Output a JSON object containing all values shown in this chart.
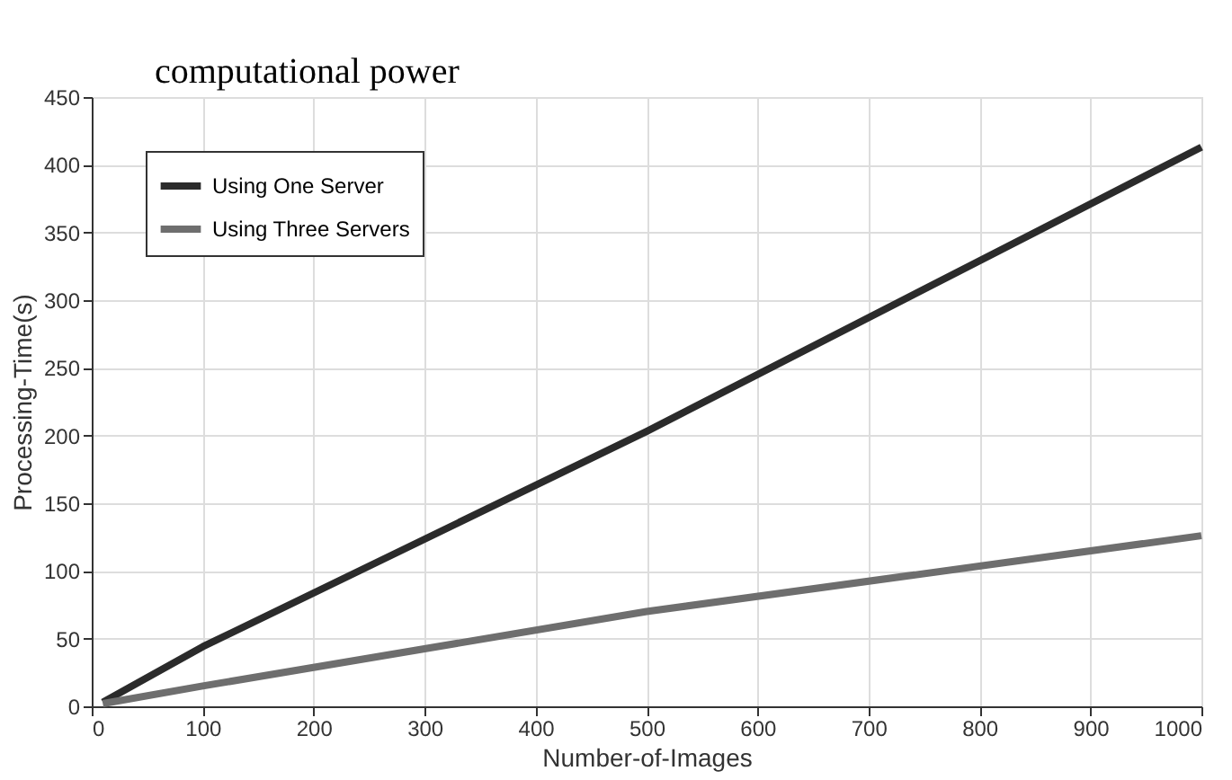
{
  "chart_data": {
    "type": "line",
    "xlabel": "Number-of-Images",
    "ylabel": "Processing-Time(s)",
    "annotations": [
      "computational power"
    ],
    "series": [
      {
        "name": "Using One Server",
        "color": "#2b2b2b",
        "x": [
          10,
          100,
          500,
          1000
        ],
        "values": [
          3,
          44,
          203,
          413
        ]
      },
      {
        "name": "Using Three Servers",
        "color": "#6e6e6e",
        "x": [
          10,
          100,
          500,
          1000
        ],
        "values": [
          2,
          15,
          70,
          126
        ]
      }
    ],
    "xlim": [
      0,
      1000
    ],
    "xticks": [
      0,
      100,
      200,
      300,
      400,
      500,
      600,
      700,
      800,
      900,
      1000
    ],
    "ylim": [
      0,
      450
    ],
    "yticks": [
      0,
      50,
      100,
      150,
      200,
      250,
      300,
      350,
      400,
      450
    ],
    "grid": true,
    "legend": "top left",
    "marker": "none",
    "line_style": "solid"
  }
}
